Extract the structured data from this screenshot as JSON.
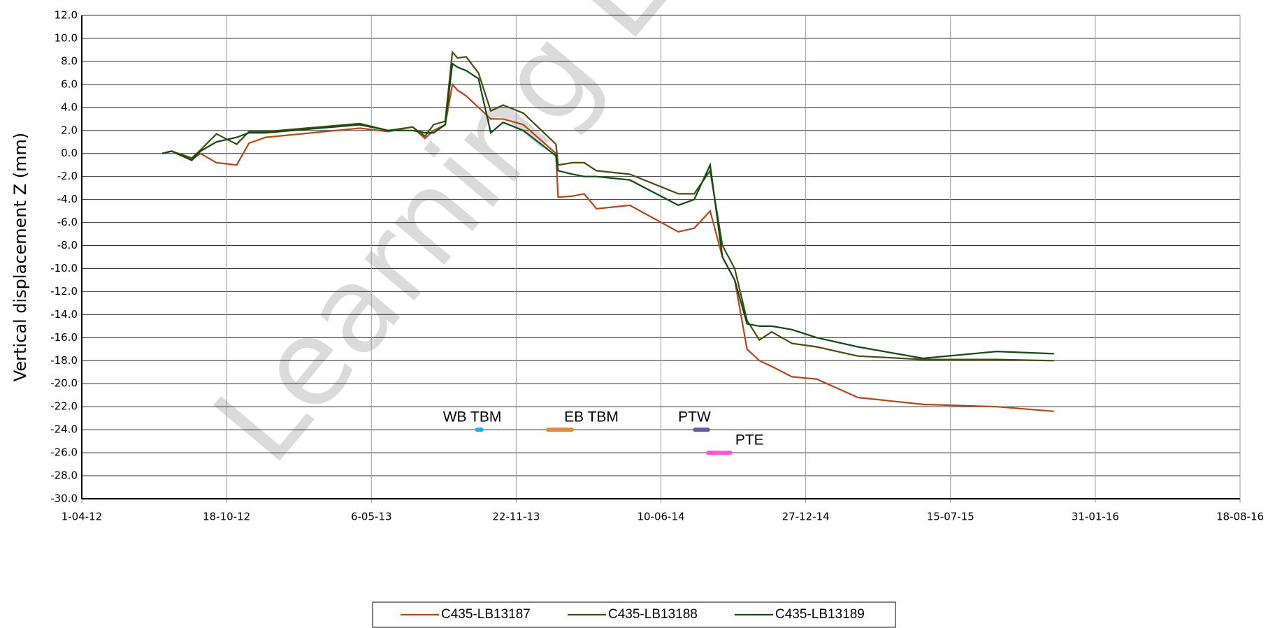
{
  "chart_data": {
    "type": "line",
    "watermark": "Learning Les",
    "y_label": "Vertical displacement Z (mm)",
    "x": [
      "2012-07-21",
      "2012-08-03",
      "2012-08-31",
      "2012-09-12",
      "2012-10-04",
      "2012-11-01",
      "2012-11-18",
      "2012-12-11",
      "2013-04-20",
      "2013-05-29",
      "2013-07-02",
      "2013-07-19",
      "2013-07-31",
      "2013-08-16",
      "2013-08-26",
      "2013-09-02",
      "2013-09-14",
      "2013-10-01",
      "2013-10-18",
      "2013-11-04",
      "2013-12-02",
      "2014-01-16",
      "2014-01-19",
      "2014-02-08",
      "2014-02-24",
      "2014-03-13",
      "2014-04-28",
      "2014-07-04",
      "2014-07-26",
      "2014-08-17",
      "2014-09-03",
      "2014-09-20",
      "2014-10-07",
      "2014-10-24",
      "2014-11-10",
      "2014-12-08",
      "2015-01-11",
      "2015-03-09",
      "2015-06-07",
      "2015-09-17",
      "2015-12-05"
    ],
    "series": [
      {
        "name": "C435-LB13187",
        "color": "#b5451b",
        "values": [
          0,
          0.2,
          -0.5,
          0,
          -0.8,
          -1.0,
          0.9,
          1.4,
          2.2,
          1.9,
          2.3,
          1.3,
          2.0,
          2.5,
          6.0,
          5.5,
          5.0,
          4.0,
          3.0,
          3.0,
          2.5,
          0.0,
          -3.8,
          -3.7,
          -3.5,
          -4.8,
          -4.5,
          -6.8,
          -6.5,
          -5.0,
          -9.0,
          -11.0,
          -17.0,
          -18.0,
          -18.5,
          -19.4,
          -19.6,
          -21.2,
          -21.8,
          -22.0,
          -22.4
        ]
      },
      {
        "name": "C435-LB13188",
        "color": "#4a4a14",
        "values": [
          0,
          0.2,
          -0.4,
          0.3,
          1.7,
          0.8,
          1.9,
          1.9,
          2.6,
          2.0,
          2.3,
          1.5,
          2.5,
          2.8,
          8.8,
          8.3,
          8.4,
          7.0,
          3.7,
          4.2,
          3.5,
          0.8,
          -1.0,
          -0.8,
          -0.8,
          -1.5,
          -1.8,
          -3.5,
          -3.5,
          -1.5,
          -8.0,
          -10.0,
          -14.5,
          -16.2,
          -15.5,
          -16.5,
          -16.8,
          -17.6,
          -17.9,
          -17.9,
          -18.0
        ]
      },
      {
        "name": "C435-LB13189",
        "color": "#0d4a14",
        "values": [
          0,
          0.2,
          -0.6,
          0.2,
          1.0,
          1.4,
          1.8,
          1.8,
          2.5,
          2.0,
          2.0,
          1.8,
          1.8,
          2.5,
          7.8,
          7.5,
          7.2,
          6.5,
          1.8,
          2.7,
          2.0,
          -0.2,
          -1.5,
          -1.8,
          -2.0,
          -2.0,
          -2.3,
          -4.5,
          -4.0,
          -1.0,
          -9.0,
          -11.0,
          -14.8,
          -15.0,
          -15.0,
          -15.3,
          -16.0,
          -16.8,
          -17.8,
          -17.2,
          -17.4
        ]
      }
    ],
    "annotations": [
      {
        "text": "WB TBM",
        "x": [
          "2013-10-02",
          "2013-10-02"
        ],
        "y": -24,
        "color": "#1ab0e8"
      },
      {
        "text": "EB TBM",
        "x": [
          "2014-01-08",
          "2014-02-04"
        ],
        "y": -24,
        "color": "#e08a3c"
      },
      {
        "text": "PTW",
        "x": [
          "2014-07-30",
          "2014-08-11"
        ],
        "y": -24,
        "color": "#6b5a9a"
      },
      {
        "text": "PTE",
        "x": [
          "2014-08-17",
          "2014-09-11"
        ],
        "y": -26,
        "color": "#ff55e0"
      }
    ],
    "xlim": [
      "2012-04-01",
      "2016-08-18"
    ],
    "xticks": [
      {
        "value": "2012-04-01",
        "label": "1-04-12"
      },
      {
        "value": "2012-10-18",
        "label": "18-10-12"
      },
      {
        "value": "2013-05-06",
        "label": "6-05-13"
      },
      {
        "value": "2013-11-22",
        "label": "22-11-13"
      },
      {
        "value": "2014-06-10",
        "label": "10-06-14"
      },
      {
        "value": "2014-12-27",
        "label": "27-12-14"
      },
      {
        "value": "2015-07-15",
        "label": "15-07-15"
      },
      {
        "value": "2016-01-31",
        "label": "31-01-16"
      },
      {
        "value": "2016-08-18",
        "label": "18-08-16"
      }
    ],
    "ylim": [
      -30,
      12
    ],
    "yticks": [
      {
        "value": 12,
        "label": "12.0"
      },
      {
        "value": 10,
        "label": "10.0"
      },
      {
        "value": 8,
        "label": "8.0"
      },
      {
        "value": 6,
        "label": "6.0"
      },
      {
        "value": 4,
        "label": "4.0"
      },
      {
        "value": 2,
        "label": "2.0"
      },
      {
        "value": 0,
        "label": "0.0"
      },
      {
        "value": -2,
        "label": "-2.0"
      },
      {
        "value": -4,
        "label": "-4.0"
      },
      {
        "value": -6,
        "label": "-6.0"
      },
      {
        "value": -8,
        "label": "-8.0"
      },
      {
        "value": -10,
        "label": "-10.0"
      },
      {
        "value": -12,
        "label": "-12.0"
      },
      {
        "value": -14,
        "label": "-14.0"
      },
      {
        "value": -16,
        "label": "-16.0"
      },
      {
        "value": -18,
        "label": "-18.0"
      },
      {
        "value": -20,
        "label": "-20.0"
      },
      {
        "value": -22,
        "label": "-22.0"
      },
      {
        "value": -24,
        "label": "-24.0"
      },
      {
        "value": -26,
        "label": "-26.0"
      },
      {
        "value": -28,
        "label": "-28.0"
      },
      {
        "value": -30,
        "label": "-30.0"
      }
    ],
    "grid": true
  }
}
